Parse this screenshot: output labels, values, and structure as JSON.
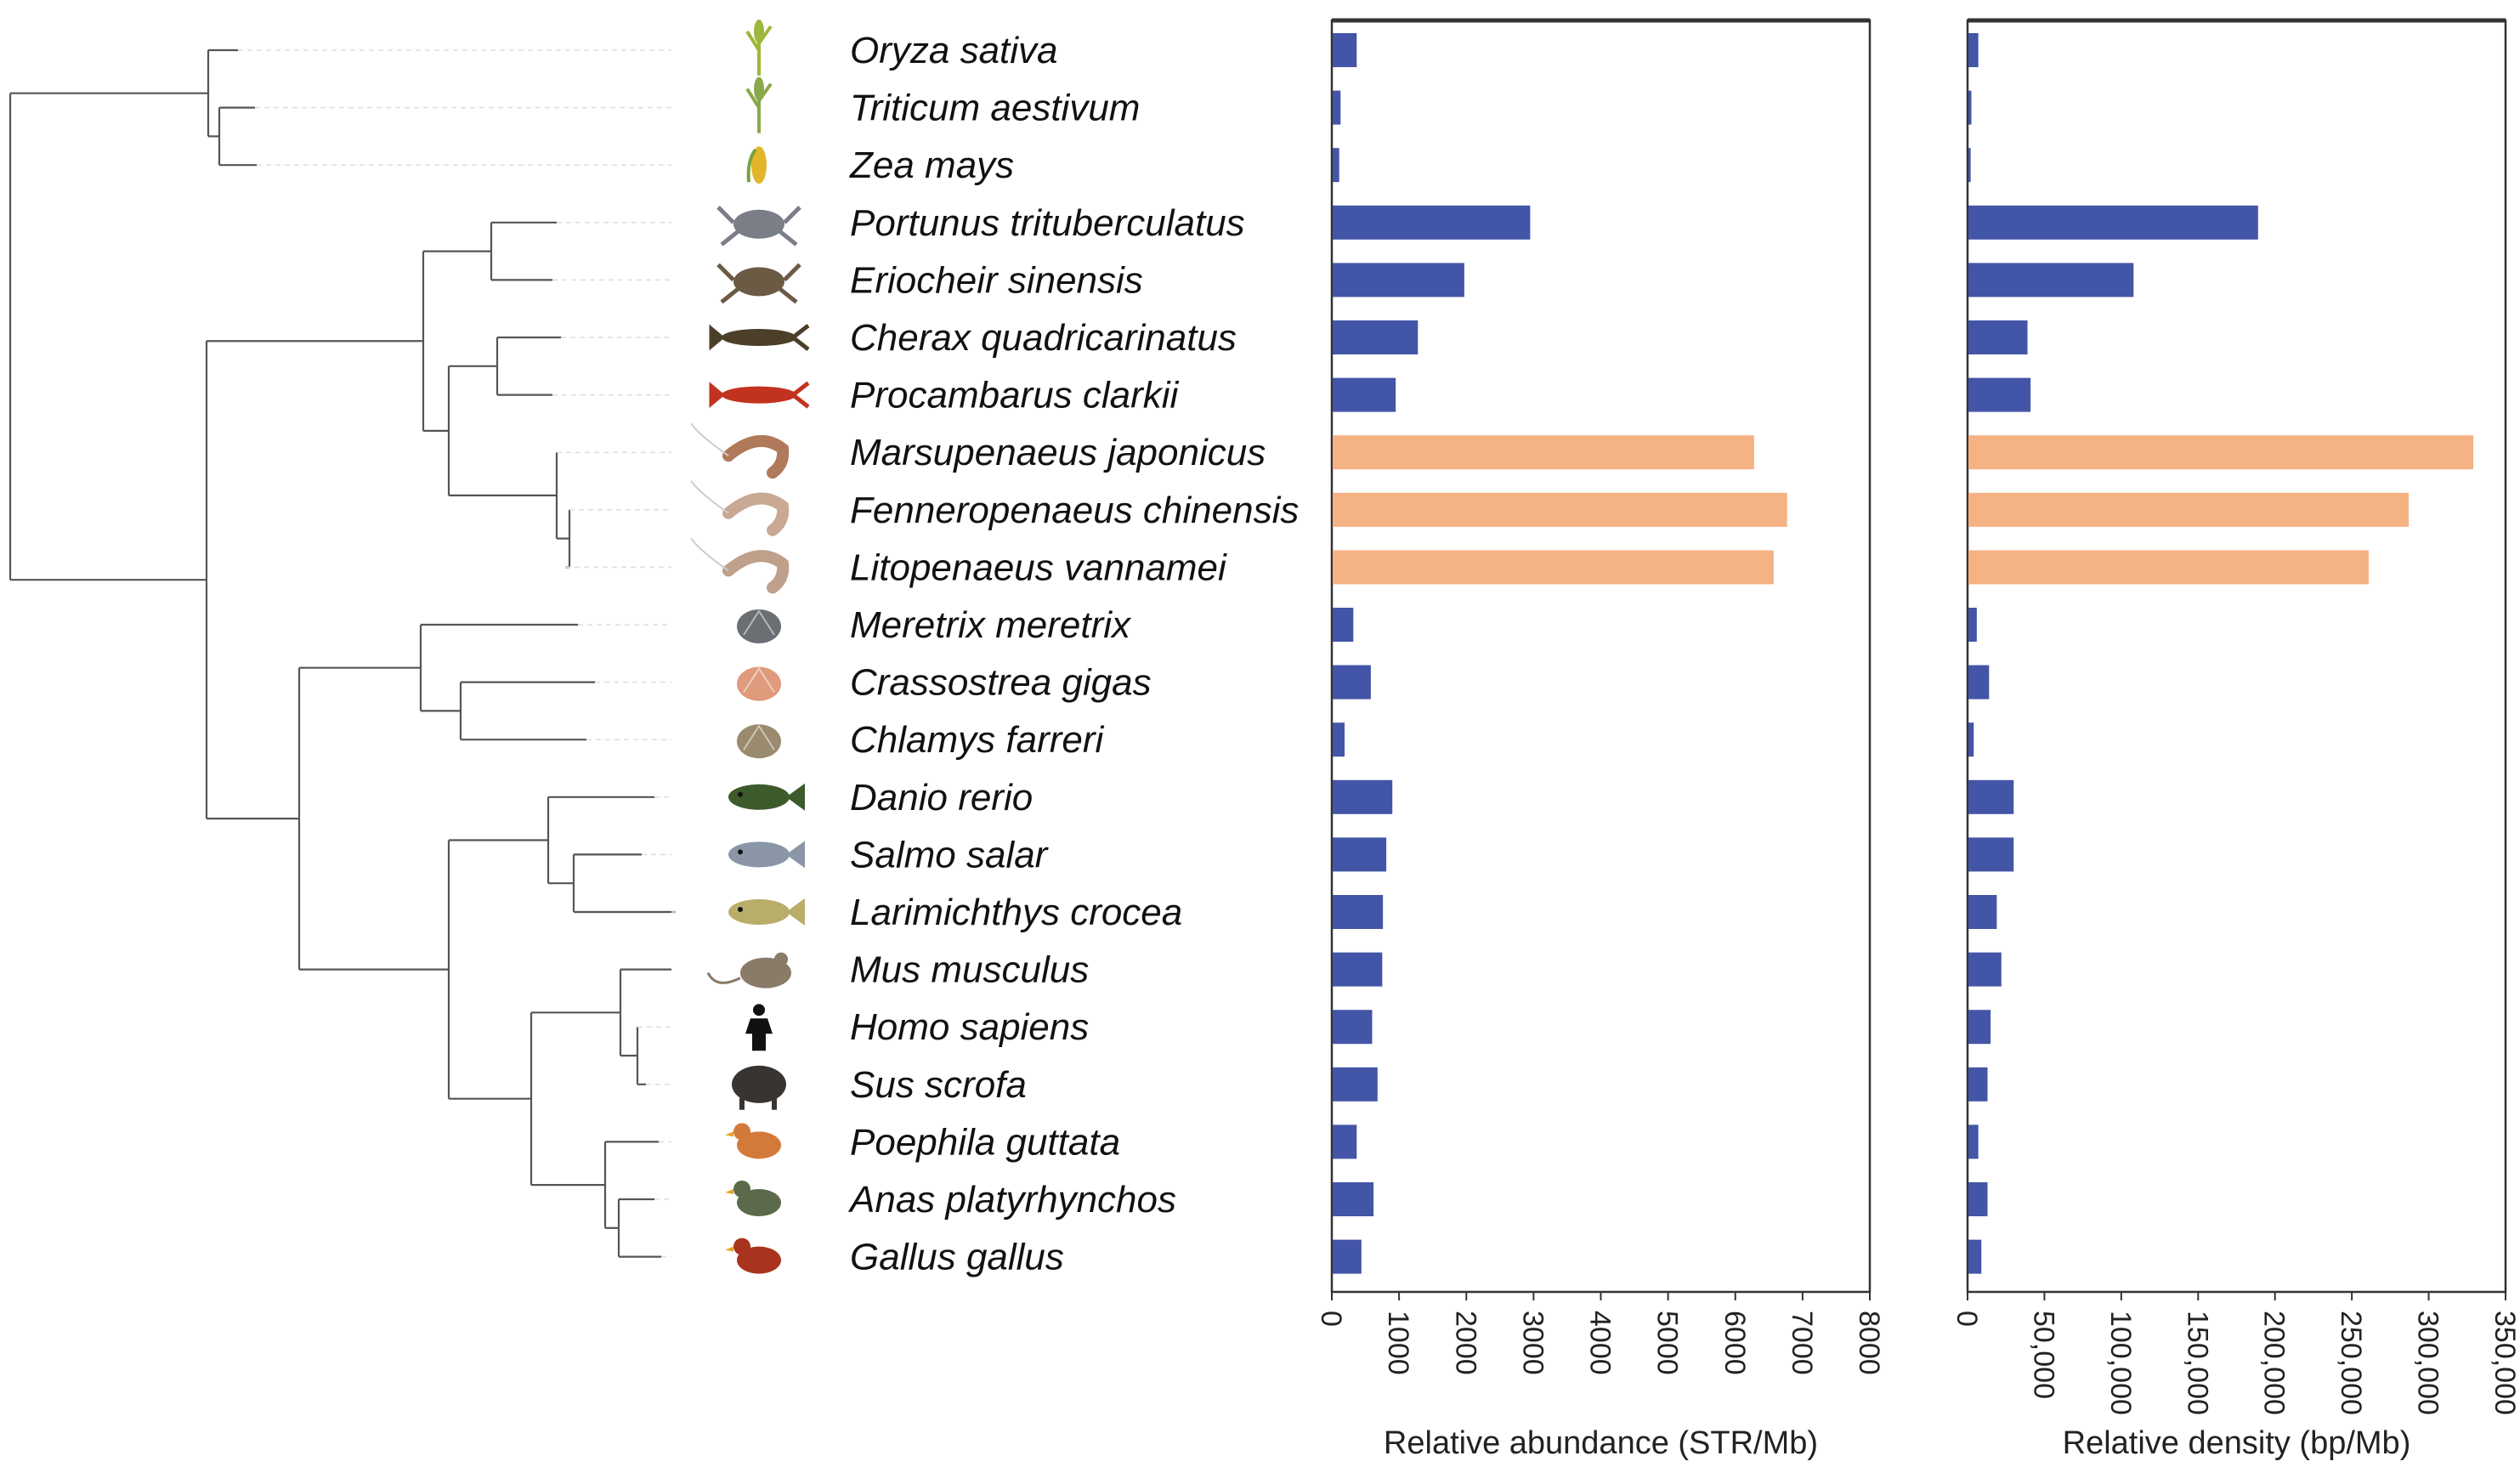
{
  "colors": {
    "standard": "#4355a6",
    "shrimp": "#f5b282",
    "tree": "#555555"
  },
  "species": [
    {
      "name": "Oryza sativa",
      "icon": "rice-plant-icon",
      "group": "standard"
    },
    {
      "name": "Triticum aestivum",
      "icon": "wheat-icon",
      "group": "standard"
    },
    {
      "name": "Zea mays",
      "icon": "corn-icon",
      "group": "standard"
    },
    {
      "name": "Portunus trituberculatus",
      "icon": "swimming-crab-icon",
      "group": "standard"
    },
    {
      "name": "Eriocheir sinensis",
      "icon": "mitten-crab-icon",
      "group": "standard"
    },
    {
      "name": "Cherax quadricarinatus",
      "icon": "crayfish-icon",
      "group": "standard"
    },
    {
      "name": "Procambarus clarkii",
      "icon": "red-crayfish-icon",
      "group": "standard"
    },
    {
      "name": "Marsupenaeus japonicus",
      "icon": "kuruma-shrimp-icon",
      "group": "shrimp"
    },
    {
      "name": "Fenneropenaeus chinensis",
      "icon": "chinese-shrimp-icon",
      "group": "shrimp"
    },
    {
      "name": "Litopenaeus vannamei",
      "icon": "whiteleg-shrimp-icon",
      "group": "shrimp"
    },
    {
      "name": "Meretrix meretrix",
      "icon": "clam-icon",
      "group": "standard"
    },
    {
      "name": "Crassostrea gigas",
      "icon": "scallop-shell-icon",
      "group": "standard"
    },
    {
      "name": "Chlamys farreri",
      "icon": "oyster-icon",
      "group": "standard"
    },
    {
      "name": "Danio rerio",
      "icon": "zebrafish-icon",
      "group": "standard"
    },
    {
      "name": "Salmo salar",
      "icon": "salmon-icon",
      "group": "standard"
    },
    {
      "name": "Larimichthys crocea",
      "icon": "croaker-fish-icon",
      "group": "standard"
    },
    {
      "name": "Mus musculus",
      "icon": "mouse-icon",
      "group": "standard"
    },
    {
      "name": "Homo sapiens",
      "icon": "human-silhouette-icon",
      "group": "standard"
    },
    {
      "name": "Sus scrofa",
      "icon": "boar-icon",
      "group": "standard"
    },
    {
      "name": "Poephila guttata",
      "icon": "finch-icon",
      "group": "standard"
    },
    {
      "name": "Anas platyrhynchos",
      "icon": "duck-icon",
      "group": "standard"
    },
    {
      "name": "Gallus gallus",
      "icon": "rooster-icon",
      "group": "standard"
    }
  ],
  "chart_data": [
    {
      "type": "bar",
      "orientation": "horizontal",
      "xlabel": "Relative abundance  (STR/Mb)",
      "xlim": [
        0,
        8000
      ],
      "ticks": [
        "0",
        "1000",
        "2000",
        "3000",
        "4000",
        "5000",
        "6000",
        "7000",
        "8000"
      ],
      "values": [
        370,
        130,
        110,
        2950,
        1970,
        1280,
        950,
        6280,
        6770,
        6570,
        320,
        580,
        190,
        900,
        810,
        760,
        750,
        600,
        680,
        370,
        620,
        440
      ]
    },
    {
      "type": "bar",
      "orientation": "horizontal",
      "xlabel": "Relative density  (bp/Mb)",
      "xlim": [
        0,
        350000
      ],
      "ticks": [
        "0",
        "50,000",
        "100,000",
        "150,000",
        "200,000",
        "250,000",
        "300,000",
        "350,000"
      ],
      "values": [
        7000,
        2500,
        2000,
        189000,
        108000,
        39000,
        41000,
        329000,
        287000,
        261000,
        6000,
        14000,
        4000,
        30000,
        30000,
        19000,
        22000,
        15000,
        13000,
        7000,
        13000,
        9000
      ]
    }
  ]
}
